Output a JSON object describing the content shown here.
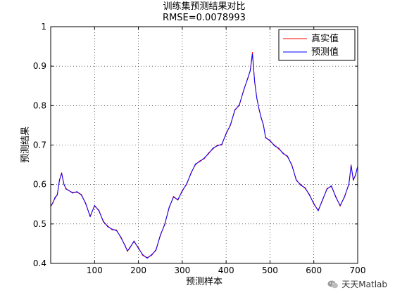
{
  "chart_data": {
    "type": "line",
    "title": "训练集预测结果对比",
    "subtitle": "RMSE=0.0078993",
    "xlabel": "预测样本",
    "ylabel": "预测结果",
    "xlim": [
      0,
      700
    ],
    "ylim": [
      0.4,
      1.0
    ],
    "x_ticks": [
      100,
      200,
      300,
      400,
      500,
      600,
      700
    ],
    "y_ticks": [
      0.4,
      0.5,
      0.6,
      0.7,
      0.8,
      0.9,
      1.0
    ],
    "y_tick_labels": [
      "0.4",
      "0.5",
      "0.6",
      "0.7",
      "0.8",
      "0.9",
      "1"
    ],
    "grid": true,
    "grid_style": "dotted",
    "legend_position": "top-right",
    "series": [
      {
        "name": "真实值",
        "color": "#ff0000",
        "x": [
          1,
          5,
          10,
          15,
          20,
          25,
          30,
          35,
          40,
          50,
          60,
          70,
          80,
          90,
          100,
          110,
          120,
          130,
          140,
          150,
          160,
          170,
          175,
          180,
          190,
          200,
          210,
          220,
          230,
          240,
          250,
          260,
          270,
          280,
          290,
          300,
          310,
          320,
          330,
          340,
          350,
          360,
          370,
          380,
          390,
          400,
          410,
          420,
          430,
          440,
          450,
          455,
          460,
          465,
          470,
          475,
          480,
          485,
          490,
          500,
          510,
          520,
          530,
          540,
          550,
          560,
          570,
          580,
          590,
          600,
          610,
          620,
          630,
          640,
          650,
          660,
          670,
          680,
          685,
          690,
          695,
          700
        ],
        "values": [
          0.545,
          0.555,
          0.565,
          0.575,
          0.61,
          0.63,
          0.6,
          0.59,
          0.585,
          0.58,
          0.58,
          0.575,
          0.55,
          0.52,
          0.545,
          0.535,
          0.505,
          0.495,
          0.485,
          0.485,
          0.465,
          0.445,
          0.43,
          0.44,
          0.455,
          0.44,
          0.42,
          0.415,
          0.42,
          0.435,
          0.47,
          0.5,
          0.54,
          0.57,
          0.56,
          0.585,
          0.6,
          0.63,
          0.65,
          0.66,
          0.665,
          0.68,
          0.69,
          0.7,
          0.7,
          0.73,
          0.75,
          0.79,
          0.8,
          0.84,
          0.87,
          0.89,
          0.935,
          0.86,
          0.82,
          0.79,
          0.77,
          0.75,
          0.72,
          0.71,
          0.7,
          0.69,
          0.68,
          0.67,
          0.65,
          0.61,
          0.6,
          0.59,
          0.575,
          0.55,
          0.535,
          0.56,
          0.59,
          0.595,
          0.57,
          0.545,
          0.57,
          0.6,
          0.65,
          0.61,
          0.625,
          0.645
        ]
      },
      {
        "name": "预测值",
        "color": "#0000ff",
        "x": [
          1,
          5,
          10,
          15,
          20,
          25,
          30,
          35,
          40,
          50,
          60,
          70,
          80,
          90,
          100,
          110,
          120,
          130,
          140,
          150,
          160,
          170,
          175,
          180,
          190,
          200,
          210,
          220,
          230,
          240,
          250,
          260,
          270,
          280,
          290,
          300,
          310,
          320,
          330,
          340,
          350,
          360,
          370,
          380,
          390,
          400,
          410,
          420,
          430,
          440,
          450,
          455,
          460,
          465,
          470,
          475,
          480,
          485,
          490,
          500,
          510,
          520,
          530,
          540,
          550,
          560,
          570,
          580,
          590,
          600,
          610,
          620,
          630,
          640,
          650,
          660,
          670,
          680,
          685,
          690,
          695,
          700
        ],
        "values": [
          0.547,
          0.553,
          0.568,
          0.573,
          0.612,
          0.628,
          0.602,
          0.588,
          0.586,
          0.578,
          0.582,
          0.573,
          0.552,
          0.518,
          0.547,
          0.533,
          0.507,
          0.493,
          0.487,
          0.483,
          0.467,
          0.443,
          0.432,
          0.438,
          0.457,
          0.438,
          0.422,
          0.413,
          0.422,
          0.433,
          0.472,
          0.498,
          0.542,
          0.568,
          0.562,
          0.583,
          0.602,
          0.628,
          0.652,
          0.658,
          0.667,
          0.678,
          0.692,
          0.698,
          0.702,
          0.728,
          0.752,
          0.788,
          0.802,
          0.838,
          0.872,
          0.888,
          0.93,
          0.862,
          0.818,
          0.792,
          0.768,
          0.752,
          0.718,
          0.712,
          0.698,
          0.692,
          0.678,
          0.672,
          0.648,
          0.612,
          0.598,
          0.592,
          0.573,
          0.552,
          0.533,
          0.562,
          0.588,
          0.597,
          0.568,
          0.547,
          0.568,
          0.602,
          0.648,
          0.612,
          0.623,
          0.647
        ]
      }
    ]
  },
  "watermark": {
    "icon": "wechat-icon",
    "text": "天天Matlab"
  }
}
